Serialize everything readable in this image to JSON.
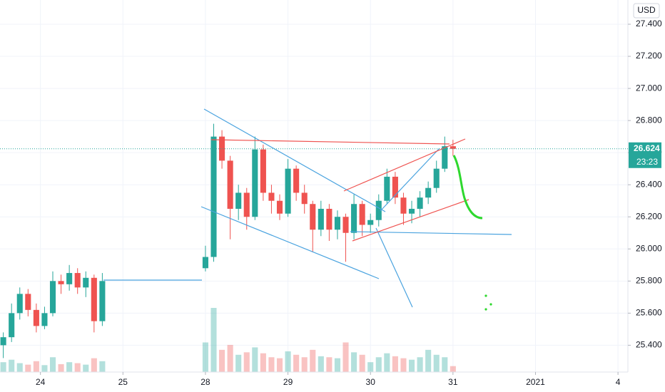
{
  "chart_data": {
    "type": "candlestick",
    "currency": "USD",
    "last_price": 26.624,
    "countdown": "23:23",
    "up_color": "#26a69a",
    "down_color": "#ef5350",
    "xlim": [
      -0.49,
      7.12
    ],
    "xticks": [
      {
        "value": 0,
        "label": "24"
      },
      {
        "value": 1,
        "label": "25"
      },
      {
        "value": 2,
        "label": "28"
      },
      {
        "value": 3,
        "label": "29"
      },
      {
        "value": 4,
        "label": "30"
      },
      {
        "value": 5,
        "label": "31"
      },
      {
        "value": 6,
        "label": "2021"
      },
      {
        "value": 7,
        "label": "4"
      }
    ],
    "ylim": [
      25.233,
      27.551
    ],
    "yticks": [
      {
        "value": 25.4,
        "label": "25.400"
      },
      {
        "value": 25.6,
        "label": "25.600"
      },
      {
        "value": 25.8,
        "label": "25.800"
      },
      {
        "value": 26.0,
        "label": "26.000"
      },
      {
        "value": 26.2,
        "label": "26.200"
      },
      {
        "value": 26.4,
        "label": "26.400"
      },
      {
        "value": 26.6,
        "label": "26.600"
      },
      {
        "value": 26.8,
        "label": "26.800"
      },
      {
        "value": 27.0,
        "label": "27.000"
      },
      {
        "value": 27.2,
        "label": "27.200"
      },
      {
        "value": 27.4,
        "label": "27.400"
      }
    ],
    "grid": true,
    "x": [
      -0.45,
      -0.35,
      -0.25,
      -0.15,
      -0.05,
      0.05,
      0.15,
      0.25,
      0.35,
      0.45,
      0.55,
      0.65,
      0.75,
      2.0,
      2.1,
      2.2,
      2.3,
      2.4,
      2.5,
      2.6,
      2.7,
      2.8,
      2.9,
      3.0,
      3.1,
      3.2,
      3.3,
      3.4,
      3.5,
      3.6,
      3.7,
      3.8,
      3.9,
      4.0,
      4.1,
      4.2,
      4.3,
      4.4,
      4.5,
      4.6,
      4.7,
      4.8,
      4.9,
      5.0
    ],
    "open": [
      25.4,
      25.45,
      25.6,
      25.72,
      25.62,
      25.52,
      25.6,
      25.8,
      25.78,
      25.85,
      25.76,
      25.82,
      25.55,
      25.88,
      25.95,
      26.7,
      26.55,
      26.25,
      26.35,
      26.2,
      26.62,
      26.35,
      26.3,
      26.22,
      26.5,
      26.35,
      26.28,
      26.12,
      26.25,
      26.12,
      26.2,
      26.1,
      26.28,
      26.15,
      26.18,
      26.3,
      26.45,
      26.32,
      26.22,
      26.25,
      26.32,
      26.38,
      26.5,
      26.64
    ],
    "high": [
      25.48,
      25.66,
      25.76,
      25.75,
      25.66,
      25.64,
      25.86,
      25.84,
      25.9,
      25.88,
      25.86,
      25.84,
      25.85,
      26.02,
      26.78,
      26.74,
      26.58,
      26.4,
      26.38,
      26.7,
      26.65,
      26.4,
      26.34,
      26.56,
      26.52,
      26.4,
      26.3,
      26.3,
      26.28,
      26.24,
      26.22,
      26.34,
      26.3,
      26.22,
      26.34,
      26.5,
      26.48,
      26.35,
      26.3,
      26.36,
      26.42,
      26.55,
      26.7,
      26.68
    ],
    "low": [
      25.32,
      25.42,
      25.56,
      25.58,
      25.48,
      25.5,
      25.58,
      25.72,
      25.74,
      25.72,
      25.7,
      25.48,
      25.52,
      25.86,
      25.92,
      26.5,
      26.06,
      26.18,
      26.12,
      26.18,
      26.3,
      26.22,
      26.18,
      26.2,
      26.3,
      26.22,
      25.98,
      26.08,
      26.05,
      26.06,
      25.92,
      26.06,
      26.08,
      26.1,
      26.14,
      26.28,
      26.28,
      26.15,
      26.16,
      26.2,
      26.28,
      26.35,
      26.48,
      26.58
    ],
    "close": [
      25.45,
      25.6,
      25.72,
      25.62,
      25.52,
      25.6,
      25.8,
      25.78,
      25.85,
      25.76,
      25.82,
      25.55,
      25.8,
      25.95,
      26.7,
      26.55,
      26.25,
      26.35,
      26.2,
      26.62,
      26.35,
      26.3,
      26.22,
      26.5,
      26.35,
      26.28,
      26.12,
      26.25,
      26.12,
      26.2,
      26.1,
      26.28,
      26.15,
      26.18,
      26.3,
      26.45,
      26.32,
      26.22,
      26.25,
      26.32,
      26.38,
      26.5,
      26.64,
      26.624
    ],
    "volume": [
      20,
      25,
      18,
      15,
      22,
      14,
      30,
      16,
      20,
      18,
      15,
      28,
      22,
      60,
      130,
      45,
      55,
      35,
      40,
      50,
      38,
      30,
      28,
      42,
      35,
      30,
      45,
      32,
      30,
      28,
      60,
      40,
      35,
      20,
      30,
      38,
      32,
      28,
      25,
      30,
      45,
      35,
      30,
      12
    ]
  }
}
